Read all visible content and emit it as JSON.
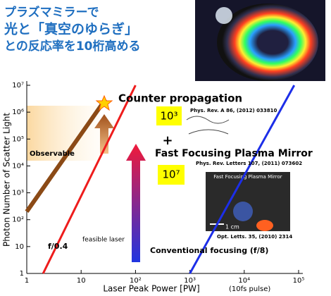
{
  "header": {
    "lines": [
      "プラズマミラーで",
      "光と「真空のゆらぎ」",
      "との反応率を10桁高める"
    ]
  },
  "chart_data": {
    "type": "line",
    "xlabel": "Laser Peak Power [PW]",
    "xlabel_note": "(10fs pulse)",
    "ylabel": "Photon Number of Scatter Light",
    "log_x": true,
    "log_y": true,
    "xlim": [
      1,
      100000
    ],
    "ylim": [
      1,
      10000000
    ],
    "xticks": [
      1,
      10,
      {
        "value": 100,
        "label": "10²"
      },
      {
        "value": 1000,
        "label": "10³"
      },
      {
        "value": 10000,
        "label": "10⁴"
      },
      {
        "value": 100000,
        "label": "10⁵"
      }
    ],
    "yticks": [
      1,
      10,
      {
        "value": 100,
        "label": "10²"
      },
      {
        "value": 1000,
        "label": "10³"
      },
      {
        "value": 10000,
        "label": "10⁴"
      },
      {
        "value": 100000,
        "label": "10⁵"
      },
      {
        "value": 1000000,
        "label": "10⁶"
      },
      {
        "value": 10000000,
        "label": "10⁷"
      }
    ],
    "series": [
      {
        "name": "Counter propagation",
        "color": "#8b4a16",
        "x": [
          1,
          28
        ],
        "values": [
          200,
          3000000
        ]
      },
      {
        "name": "f/0.4",
        "color": "#ee1c1c",
        "x": [
          2,
          100
        ],
        "values": [
          1,
          10000000
        ]
      },
      {
        "name": "Conventional focusing (f/8)",
        "color": "#1c2ee8",
        "x": [
          1000,
          83000
        ],
        "values": [
          1,
          10000000
        ]
      }
    ],
    "annotations": [
      "Observable",
      "feasible laser",
      "10³",
      "+",
      "Fast Focusing Plasma Mirror",
      "10⁷",
      "Phys. Rev. A 86, (2012) 033810",
      "Phys. Rev. Letters 107, (2011) 073602",
      "Opt. Letts. 35, (2010) 2314"
    ],
    "inset": {
      "title": "Fast Focusing Plasma Mirror",
      "scale": "1 cm"
    }
  }
}
